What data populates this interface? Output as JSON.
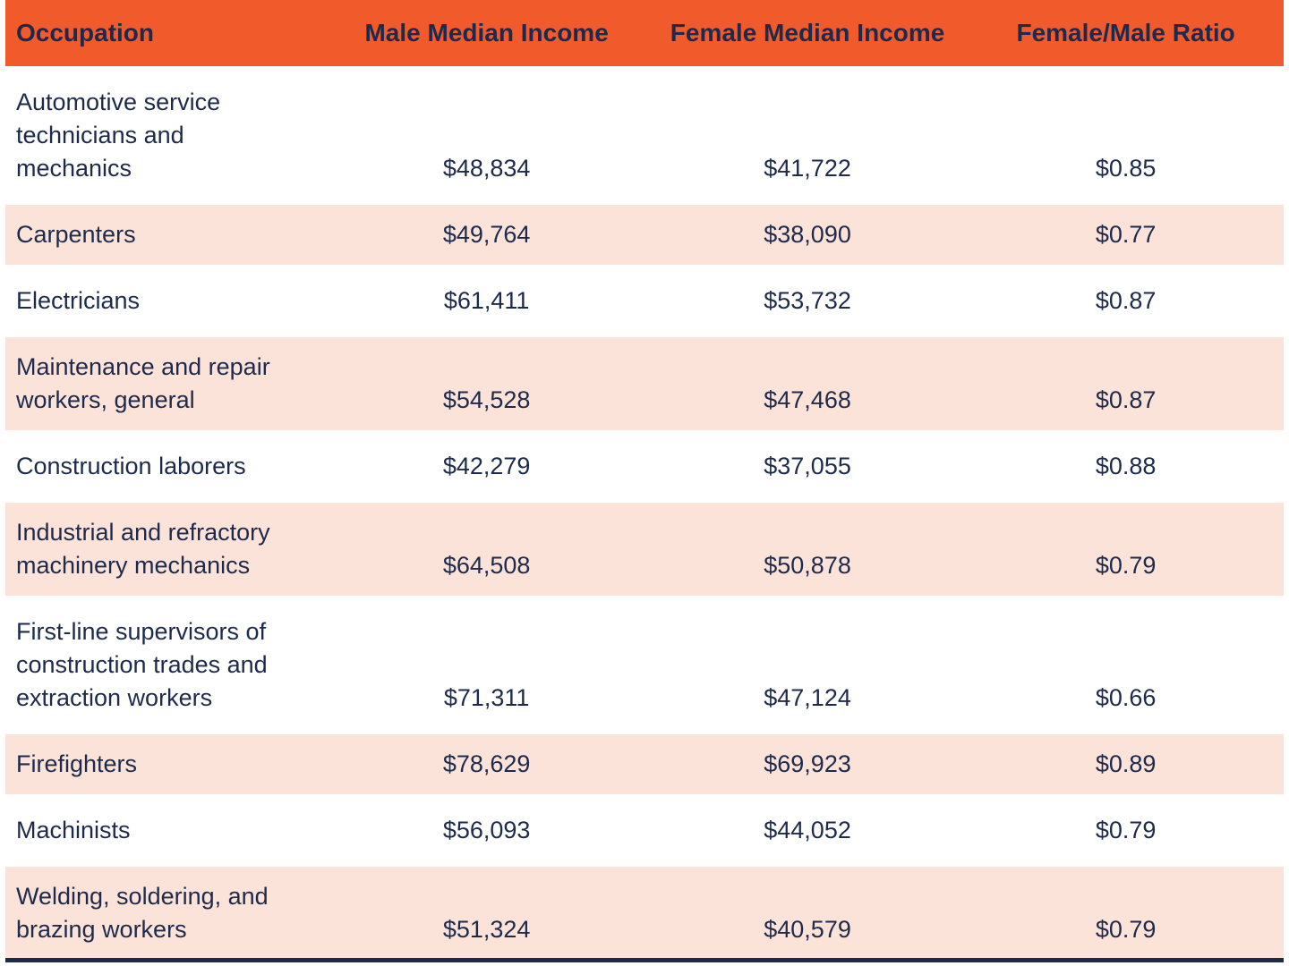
{
  "colors": {
    "header_bg": "#F15B2B",
    "alt_row_bg": "#FCE3D9",
    "text_navy": "#1E2A4C",
    "page_bg": "#FFFFFF",
    "bottom_bar": "#1E2A4C"
  },
  "table": {
    "headers": [
      "Occupation",
      "Male Median Income",
      "Female Median Income",
      "Female/Male Ratio"
    ],
    "rows": [
      [
        "Automotive service technicians and mechanics",
        "$48,834",
        "$41,722",
        "$0.85"
      ],
      [
        "Carpenters",
        "$49,764",
        "$38,090",
        "$0.77"
      ],
      [
        "Electricians",
        "$61,411",
        "$53,732",
        "$0.87"
      ],
      [
        "Maintenance and repair workers, general",
        "$54,528",
        "$47,468",
        "$0.87"
      ],
      [
        "Construction laborers",
        "$42,279",
        "$37,055",
        "$0.88"
      ],
      [
        "Industrial and refractory machinery mechanics",
        "$64,508",
        "$50,878",
        "$0.79"
      ],
      [
        "First-line supervisors of construction trades and extraction workers",
        "$71,311",
        "$47,124",
        "$0.66"
      ],
      [
        "Firefighters",
        "$78,629",
        "$69,923",
        "$0.89"
      ],
      [
        "Machinists",
        "$56,093",
        "$44,052",
        "$0.79"
      ],
      [
        "Welding, soldering, and brazing workers",
        "$51,324",
        "$40,579",
        "$0.79"
      ]
    ]
  },
  "chart_data": {
    "type": "table",
    "columns": [
      "Occupation",
      "Male Median Income",
      "Female Median Income",
      "Female/Male Ratio"
    ],
    "rows": [
      {
        "occupation": "Automotive service technicians and mechanics",
        "male_median_income": 48834,
        "female_median_income": 41722,
        "female_male_ratio": 0.85
      },
      {
        "occupation": "Carpenters",
        "male_median_income": 49764,
        "female_median_income": 38090,
        "female_male_ratio": 0.77
      },
      {
        "occupation": "Electricians",
        "male_median_income": 61411,
        "female_median_income": 53732,
        "female_male_ratio": 0.87
      },
      {
        "occupation": "Maintenance and repair workers, general",
        "male_median_income": 54528,
        "female_median_income": 47468,
        "female_male_ratio": 0.87
      },
      {
        "occupation": "Construction laborers",
        "male_median_income": 42279,
        "female_median_income": 37055,
        "female_male_ratio": 0.88
      },
      {
        "occupation": "Industrial and refractory machinery mechanics",
        "male_median_income": 64508,
        "female_median_income": 50878,
        "female_male_ratio": 0.79
      },
      {
        "occupation": "First-line supervisors of construction trades and extraction workers",
        "male_median_income": 71311,
        "female_median_income": 47124,
        "female_male_ratio": 0.66
      },
      {
        "occupation": "Firefighters",
        "male_median_income": 78629,
        "female_median_income": 69923,
        "female_male_ratio": 0.89
      },
      {
        "occupation": "Machinists",
        "male_median_income": 56093,
        "female_median_income": 44052,
        "female_male_ratio": 0.79
      },
      {
        "occupation": "Welding, soldering, and brazing workers",
        "male_median_income": 51324,
        "female_median_income": 40579,
        "female_male_ratio": 0.79
      }
    ]
  }
}
